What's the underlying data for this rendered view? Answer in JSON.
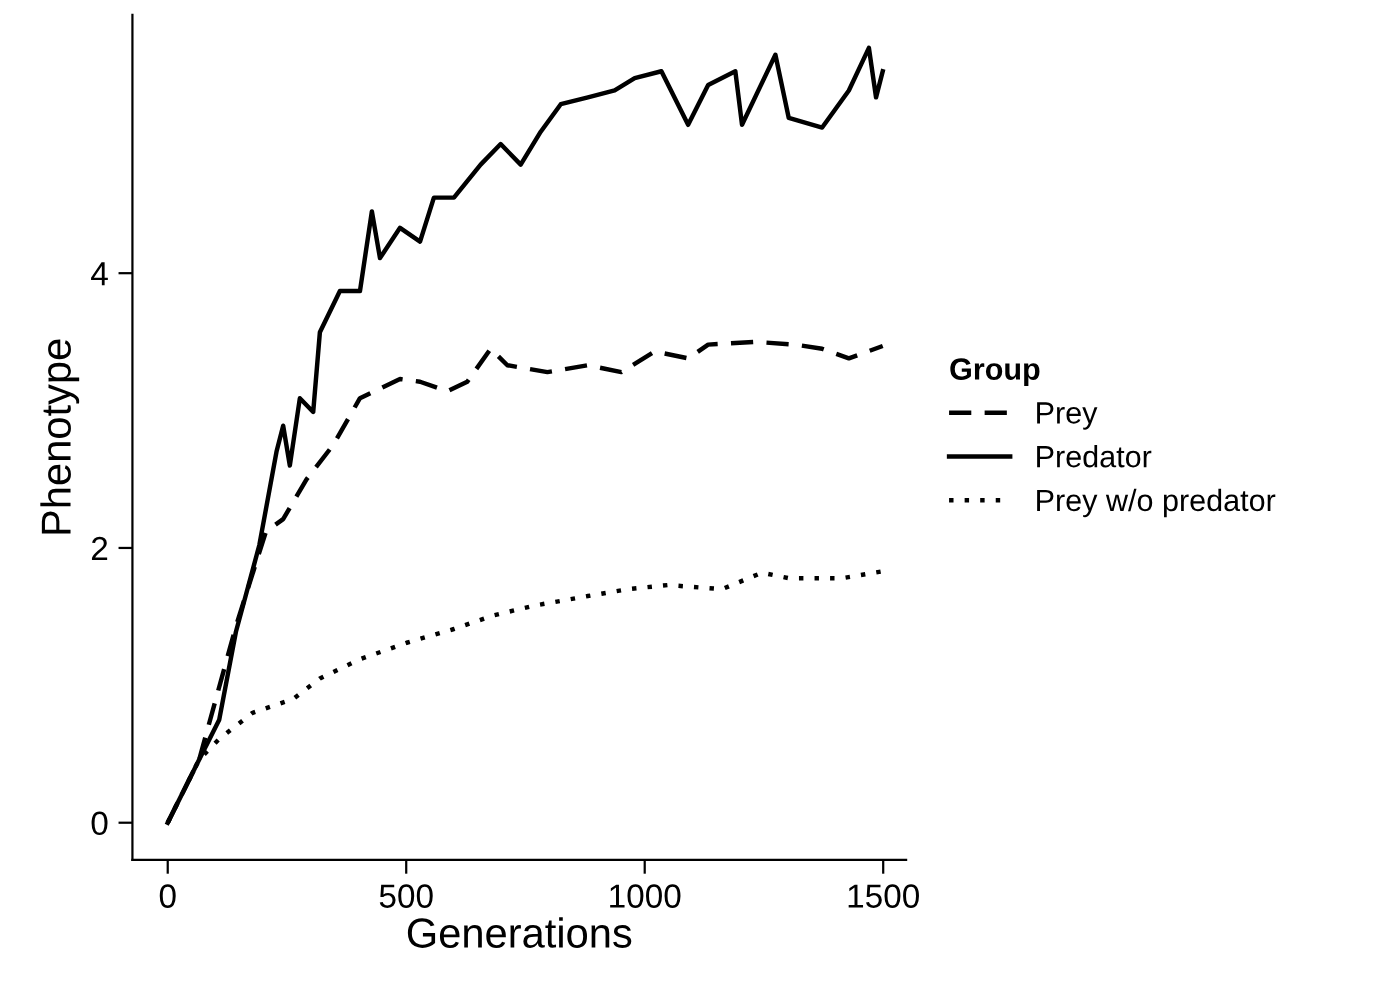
{
  "chart_data": {
    "type": "line",
    "xlabel": "Generations",
    "ylabel": "Phenotype",
    "legend_title": "Group",
    "legend": "right",
    "grid": false,
    "xlim": [
      -74,
      1548
    ],
    "ylim": [
      -0.27,
      5.88
    ],
    "xticks": [
      0,
      500,
      1000,
      1500
    ],
    "yticks": [
      0,
      2,
      4
    ],
    "series": [
      {
        "name": "Prey",
        "color": "#000000",
        "line_style": "dashed",
        "x": [
          0,
          66,
          143,
          206,
          242,
          291,
          347,
          403,
          487,
          529,
          586,
          628,
          677,
          712,
          796,
          881,
          951,
          1021,
          1091,
          1133,
          1232,
          1316,
          1372,
          1428,
          1499
        ],
        "values": [
          0,
          0.46,
          1.43,
          2.12,
          2.21,
          2.5,
          2.75,
          3.09,
          3.23,
          3.21,
          3.14,
          3.21,
          3.45,
          3.33,
          3.28,
          3.33,
          3.28,
          3.43,
          3.38,
          3.48,
          3.5,
          3.48,
          3.45,
          3.38,
          3.47
        ]
      },
      {
        "name": "Predator",
        "color": "#000000",
        "line_style": "solid",
        "x": [
          0,
          66,
          108,
          143,
          192,
          228,
          242,
          256,
          277,
          305,
          319,
          361,
          403,
          428,
          445,
          487,
          529,
          558,
          600,
          656,
          698,
          740,
          782,
          824,
          881,
          937,
          979,
          1035,
          1091,
          1133,
          1190,
          1204,
          1274,
          1302,
          1372,
          1428,
          1470,
          1485,
          1499
        ],
        "values": [
          0,
          0.46,
          0.75,
          1.39,
          2.02,
          2.7,
          2.89,
          2.6,
          3.09,
          2.99,
          3.57,
          3.87,
          3.87,
          4.45,
          4.11,
          4.33,
          4.23,
          4.55,
          4.55,
          4.79,
          4.94,
          4.79,
          5.03,
          5.23,
          5.28,
          5.33,
          5.42,
          5.47,
          5.08,
          5.37,
          5.47,
          5.08,
          5.59,
          5.13,
          5.06,
          5.33,
          5.64,
          5.28,
          5.47
        ]
      },
      {
        "name": "Prey w/o predator",
        "color": "#000000",
        "line_style": "dotted",
        "x": [
          0,
          66,
          108,
          178,
          263,
          319,
          403,
          501,
          600,
          684,
          768,
          881,
          965,
          1049,
          1162,
          1246,
          1302,
          1414,
          1499
        ],
        "values": [
          0,
          0.46,
          0.61,
          0.8,
          0.9,
          1.05,
          1.19,
          1.31,
          1.41,
          1.51,
          1.58,
          1.65,
          1.7,
          1.73,
          1.7,
          1.82,
          1.78,
          1.78,
          1.83
        ]
      }
    ]
  }
}
